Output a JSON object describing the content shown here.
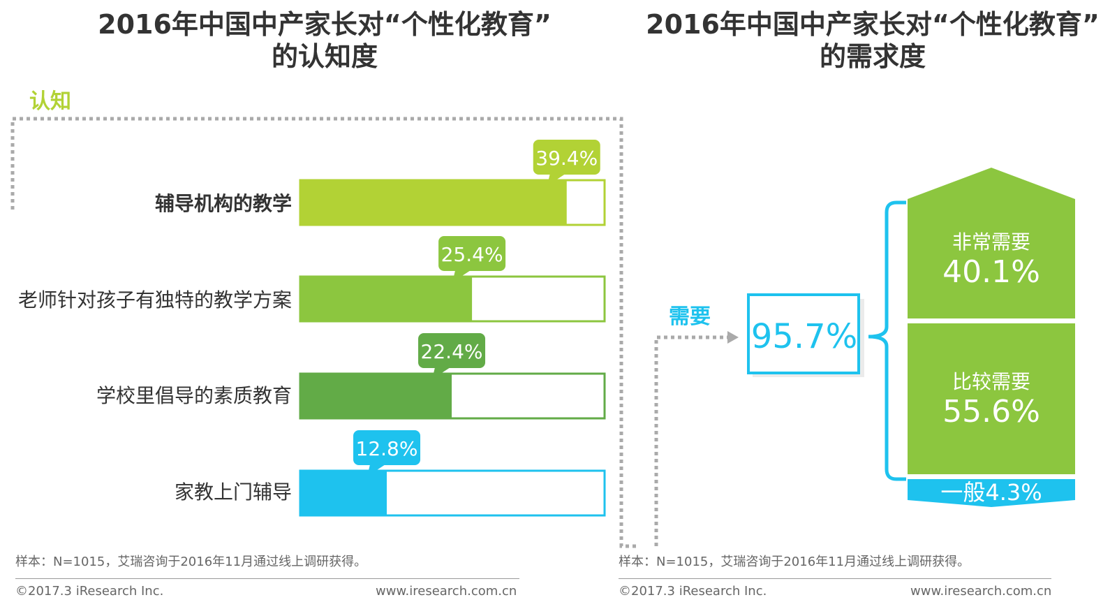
{
  "left": {
    "title_line1": "2016年中国中产家长对“个性化教育”",
    "title_line2": "的认知度",
    "section_label": "认知"
  },
  "right": {
    "title_line1": "2016年中国中产家长对“个性化教育”",
    "title_line2": "的需求度",
    "section_label": "需要"
  },
  "chart_data": [
    {
      "type": "bar",
      "orientation": "horizontal",
      "title": "2016年中国中产家长对“个性化教育”的认知度",
      "section": "认知",
      "categories": [
        "辅导机构的教学",
        "老师针对孩子有独特的教学方案",
        "学校里倡导的素质教育",
        "家教上门辅导"
      ],
      "values": [
        39.4,
        25.4,
        22.4,
        12.8
      ],
      "value_labels": [
        "39.4%",
        "25.4%",
        "22.4%",
        "12.8%"
      ],
      "xlim": [
        0,
        45
      ],
      "colors": [
        "#b2d235",
        "#8cc63f",
        "#62ab47",
        "#1ec2ee"
      ],
      "grid": false
    },
    {
      "type": "bar",
      "orientation": "stacked-vertical",
      "title": "2016年中国中产家长对“个性化教育”的需求度",
      "section": "需要",
      "total_label": "95.7%",
      "total": 95.7,
      "categories": [
        "非常需要",
        "比较需要",
        "一般"
      ],
      "values": [
        40.1,
        55.6,
        4.3
      ],
      "value_labels": [
        "40.1%",
        "55.6%",
        "4.3%"
      ],
      "colors": [
        "#8cc63f",
        "#8cc63f",
        "#1ec2ee"
      ]
    }
  ],
  "footer": {
    "note": "样本：N=1015，艾瑞咨询于2016年11月通过线上调研获得。",
    "copyright": "©2017.3  iResearch Inc.",
    "url": "www.iresearch.com.cn"
  },
  "colors": {
    "lime": "#b2d235",
    "green": "#8cc63f",
    "dark_green": "#62ab47",
    "cyan": "#1ec2ee",
    "dotted_border": "#aaaaaa"
  }
}
